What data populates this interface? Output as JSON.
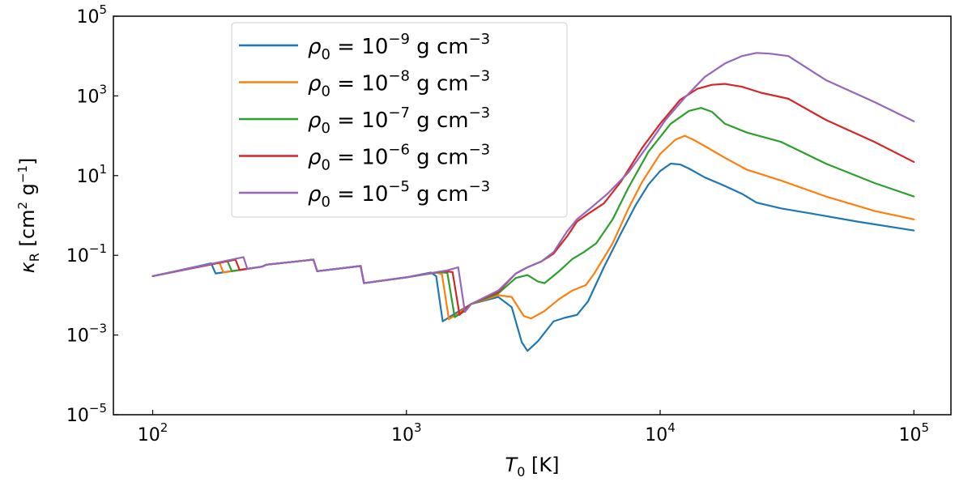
{
  "chart_data": {
    "type": "line",
    "xscale": "log",
    "yscale": "log",
    "xlim": [
      70,
      140000
    ],
    "ylim": [
      1e-05,
      100000
    ],
    "xlabel": {
      "symbol": "T",
      "sub": "0",
      "unit": "[K]"
    },
    "ylabel": {
      "symbol": "κ",
      "sub": "R",
      "unit": "[cm",
      "unit_sup": "2",
      "unit_mid": " g",
      "unit_sup2": "−1",
      "unit_end": "]"
    },
    "x_ticks": [
      {
        "value": 100,
        "base": "10",
        "exp": "2"
      },
      {
        "value": 1000,
        "base": "10",
        "exp": "3"
      },
      {
        "value": 10000,
        "base": "10",
        "exp": "4"
      },
      {
        "value": 100000,
        "base": "10",
        "exp": "5"
      }
    ],
    "y_ticks": [
      {
        "value": 1e-05,
        "base": "10",
        "exp": "−5"
      },
      {
        "value": 0.001,
        "base": "10",
        "exp": "−3"
      },
      {
        "value": 0.1,
        "base": "10",
        "exp": "−1"
      },
      {
        "value": 10,
        "base": "10",
        "exp": "1"
      },
      {
        "value": 1000,
        "base": "10",
        "exp": "3"
      },
      {
        "value": 100000,
        "base": "10",
        "exp": "5"
      }
    ],
    "legend": {
      "position": "upper-left",
      "symbol": "ρ",
      "sub": "0",
      "equals": " = ",
      "base": "10",
      "unit": "g cm",
      "unit_exp": "−3"
    },
    "series": [
      {
        "name": "rho0 = 1e-9 g cm^-3",
        "legend_exp": "−9",
        "color": "#1f77b4",
        "points": [
          [
            100,
            0.03
          ],
          [
            170,
            0.063
          ],
          [
            177,
            0.035
          ],
          [
            270,
            0.052
          ],
          [
            275,
            0.055
          ],
          [
            280,
            0.058
          ],
          [
            430,
            0.078
          ],
          [
            445,
            0.04
          ],
          [
            660,
            0.054
          ],
          [
            680,
            0.02
          ],
          [
            1000,
            0.028
          ],
          [
            1250,
            0.037
          ],
          [
            1310,
            0.03
          ],
          [
            1390,
            0.0022
          ],
          [
            1500,
            0.003
          ],
          [
            1800,
            0.006
          ],
          [
            2300,
            0.009
          ],
          [
            2600,
            0.005
          ],
          [
            2850,
            0.00065
          ],
          [
            3000,
            0.0004
          ],
          [
            3300,
            0.0007
          ],
          [
            3800,
            0.0022
          ],
          [
            4200,
            0.0027
          ],
          [
            4700,
            0.0032
          ],
          [
            5200,
            0.007
          ],
          [
            6000,
            0.05
          ],
          [
            7000,
            0.35
          ],
          [
            8000,
            1.8
          ],
          [
            9000,
            6
          ],
          [
            10000,
            13
          ],
          [
            11000,
            20
          ],
          [
            12000,
            19
          ],
          [
            13000,
            15
          ],
          [
            15000,
            9
          ],
          [
            18000,
            5.5
          ],
          [
            21000,
            3.5
          ],
          [
            24000,
            2.1
          ],
          [
            30000,
            1.5
          ],
          [
            40000,
            1.1
          ],
          [
            60000,
            0.7
          ],
          [
            100000,
            0.42
          ]
        ]
      },
      {
        "name": "rho0 = 1e-8 g cm^-3",
        "legend_exp": "−8",
        "color": "#ff7f0e",
        "points": [
          [
            100,
            0.03
          ],
          [
            183,
            0.067
          ],
          [
            190,
            0.037
          ],
          [
            270,
            0.052
          ],
          [
            275,
            0.055
          ],
          [
            280,
            0.058
          ],
          [
            430,
            0.078
          ],
          [
            445,
            0.04
          ],
          [
            660,
            0.054
          ],
          [
            680,
            0.02
          ],
          [
            1000,
            0.028
          ],
          [
            1300,
            0.037
          ],
          [
            1380,
            0.034
          ],
          [
            1470,
            0.0025
          ],
          [
            1600,
            0.0035
          ],
          [
            1800,
            0.006
          ],
          [
            2300,
            0.01
          ],
          [
            2600,
            0.009
          ],
          [
            2900,
            0.003
          ],
          [
            3100,
            0.0026
          ],
          [
            3500,
            0.004
          ],
          [
            4000,
            0.008
          ],
          [
            4500,
            0.013
          ],
          [
            5100,
            0.018
          ],
          [
            5500,
            0.035
          ],
          [
            6500,
            0.2
          ],
          [
            7500,
            1.5
          ],
          [
            8500,
            7
          ],
          [
            10000,
            35
          ],
          [
            11500,
            80
          ],
          [
            12500,
            100
          ],
          [
            13500,
            80
          ],
          [
            15000,
            55
          ],
          [
            18000,
            28
          ],
          [
            22000,
            14
          ],
          [
            30000,
            7.5
          ],
          [
            45000,
            3
          ],
          [
            70000,
            1.3
          ],
          [
            100000,
            0.8
          ]
        ]
      },
      {
        "name": "rho0 = 1e-7 g cm^-3",
        "legend_exp": "−7",
        "color": "#2ca02c",
        "points": [
          [
            100,
            0.03
          ],
          [
            197,
            0.072
          ],
          [
            205,
            0.04
          ],
          [
            270,
            0.052
          ],
          [
            275,
            0.055
          ],
          [
            280,
            0.058
          ],
          [
            430,
            0.078
          ],
          [
            445,
            0.04
          ],
          [
            660,
            0.054
          ],
          [
            680,
            0.02
          ],
          [
            1000,
            0.028
          ],
          [
            1350,
            0.038
          ],
          [
            1450,
            0.036
          ],
          [
            1550,
            0.0028
          ],
          [
            1700,
            0.004
          ],
          [
            1800,
            0.006
          ],
          [
            2300,
            0.011
          ],
          [
            2700,
            0.027
          ],
          [
            3000,
            0.032
          ],
          [
            3300,
            0.022
          ],
          [
            3500,
            0.02
          ],
          [
            4000,
            0.04
          ],
          [
            4500,
            0.08
          ],
          [
            5000,
            0.12
          ],
          [
            5600,
            0.2
          ],
          [
            6500,
            0.8
          ],
          [
            7500,
            5
          ],
          [
            9000,
            40
          ],
          [
            11000,
            200
          ],
          [
            13000,
            420
          ],
          [
            14500,
            500
          ],
          [
            16000,
            400
          ],
          [
            18000,
            200
          ],
          [
            22000,
            120
          ],
          [
            30000,
            70
          ],
          [
            45000,
            20
          ],
          [
            70000,
            6.5
          ],
          [
            100000,
            3
          ]
        ]
      },
      {
        "name": "rho0 = 1e-6 g cm^-3",
        "legend_exp": "−6",
        "color": "#d62728",
        "points": [
          [
            100,
            0.03
          ],
          [
            212,
            0.078
          ],
          [
            220,
            0.043
          ],
          [
            270,
            0.052
          ],
          [
            275,
            0.055
          ],
          [
            280,
            0.058
          ],
          [
            430,
            0.078
          ],
          [
            445,
            0.04
          ],
          [
            660,
            0.054
          ],
          [
            680,
            0.02
          ],
          [
            1000,
            0.028
          ],
          [
            1400,
            0.04
          ],
          [
            1520,
            0.038
          ],
          [
            1620,
            0.0032
          ],
          [
            1700,
            0.0045
          ],
          [
            1800,
            0.006
          ],
          [
            2300,
            0.012
          ],
          [
            2700,
            0.035
          ],
          [
            3000,
            0.05
          ],
          [
            3400,
            0.07
          ],
          [
            3800,
            0.11
          ],
          [
            4300,
            0.3
          ],
          [
            4700,
            0.7
          ],
          [
            5200,
            1.1
          ],
          [
            6000,
            2
          ],
          [
            7000,
            7
          ],
          [
            8500,
            50
          ],
          [
            10000,
            200
          ],
          [
            12000,
            800
          ],
          [
            14000,
            1500
          ],
          [
            16000,
            1900
          ],
          [
            18000,
            2000
          ],
          [
            21000,
            1700
          ],
          [
            25000,
            1200
          ],
          [
            32000,
            850
          ],
          [
            45000,
            250
          ],
          [
            70000,
            70
          ],
          [
            100000,
            22
          ]
        ]
      },
      {
        "name": "rho0 = 1e-5 g cm^-3",
        "legend_exp": "−5",
        "color": "#9467bd",
        "points": [
          [
            100,
            0.03
          ],
          [
            228,
            0.09
          ],
          [
            236,
            0.046
          ],
          [
            270,
            0.052
          ],
          [
            275,
            0.055
          ],
          [
            280,
            0.058
          ],
          [
            430,
            0.078
          ],
          [
            445,
            0.04
          ],
          [
            660,
            0.054
          ],
          [
            680,
            0.02
          ],
          [
            1000,
            0.028
          ],
          [
            1450,
            0.042
          ],
          [
            1600,
            0.05
          ],
          [
            1700,
            0.0038
          ],
          [
            1800,
            0.006
          ],
          [
            2300,
            0.013
          ],
          [
            2700,
            0.035
          ],
          [
            3000,
            0.05
          ],
          [
            3400,
            0.07
          ],
          [
            3800,
            0.12
          ],
          [
            4300,
            0.4
          ],
          [
            4700,
            0.8
          ],
          [
            5300,
            1.5
          ],
          [
            6200,
            3.5
          ],
          [
            7500,
            12
          ],
          [
            9000,
            60
          ],
          [
            10500,
            250
          ],
          [
            12500,
            900
          ],
          [
            15000,
            3000
          ],
          [
            18000,
            6500
          ],
          [
            21000,
            10000
          ],
          [
            24000,
            12000
          ],
          [
            27000,
            11500
          ],
          [
            32000,
            10000
          ],
          [
            45000,
            2500
          ],
          [
            70000,
            700
          ],
          [
            100000,
            230
          ]
        ]
      }
    ]
  }
}
